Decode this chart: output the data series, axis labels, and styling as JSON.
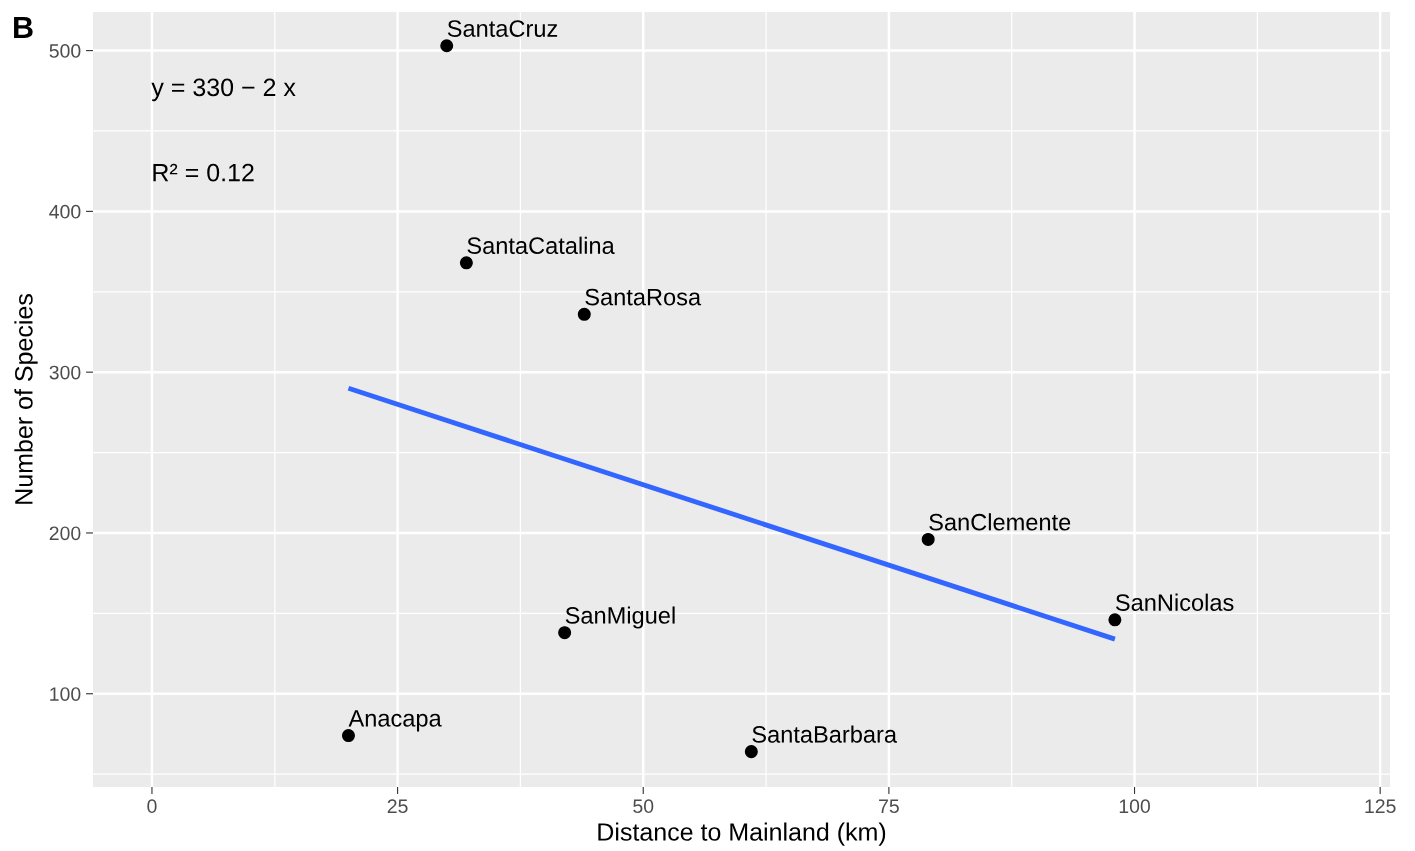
{
  "chart_data": {
    "type": "scatter",
    "xlabel": "Distance to Mainland (km)",
    "ylabel": "Number of Species",
    "annotations": [
      "B",
      "y = 330 − 2 x",
      "R² = 0.12"
    ],
    "series": [
      {
        "color": "#000000",
        "marker": "circle",
        "x": [
          30,
          32,
          44,
          79,
          98,
          42,
          20,
          61
        ],
        "values": [
          503,
          368,
          336,
          196,
          146,
          138,
          74,
          64
        ],
        "value_labels": [
          "SantaCruz",
          "SantaCatalina",
          "SantaRosa",
          "SanClemente",
          "SanNicolas",
          "SanMiguel",
          "Anacapa",
          "SantaBarbara"
        ]
      },
      {
        "type": "line",
        "color": "#3366ff",
        "x": [
          20,
          98
        ],
        "values": [
          290,
          134
        ]
      }
    ],
    "xlim": [
      -6,
      126
    ],
    "ylim": [
      42,
      524
    ],
    "xticks": [
      0,
      25,
      50,
      75,
      100,
      125
    ],
    "yticks": [
      100,
      200,
      300,
      400,
      500
    ],
    "grid": true,
    "line_style": "solid"
  }
}
